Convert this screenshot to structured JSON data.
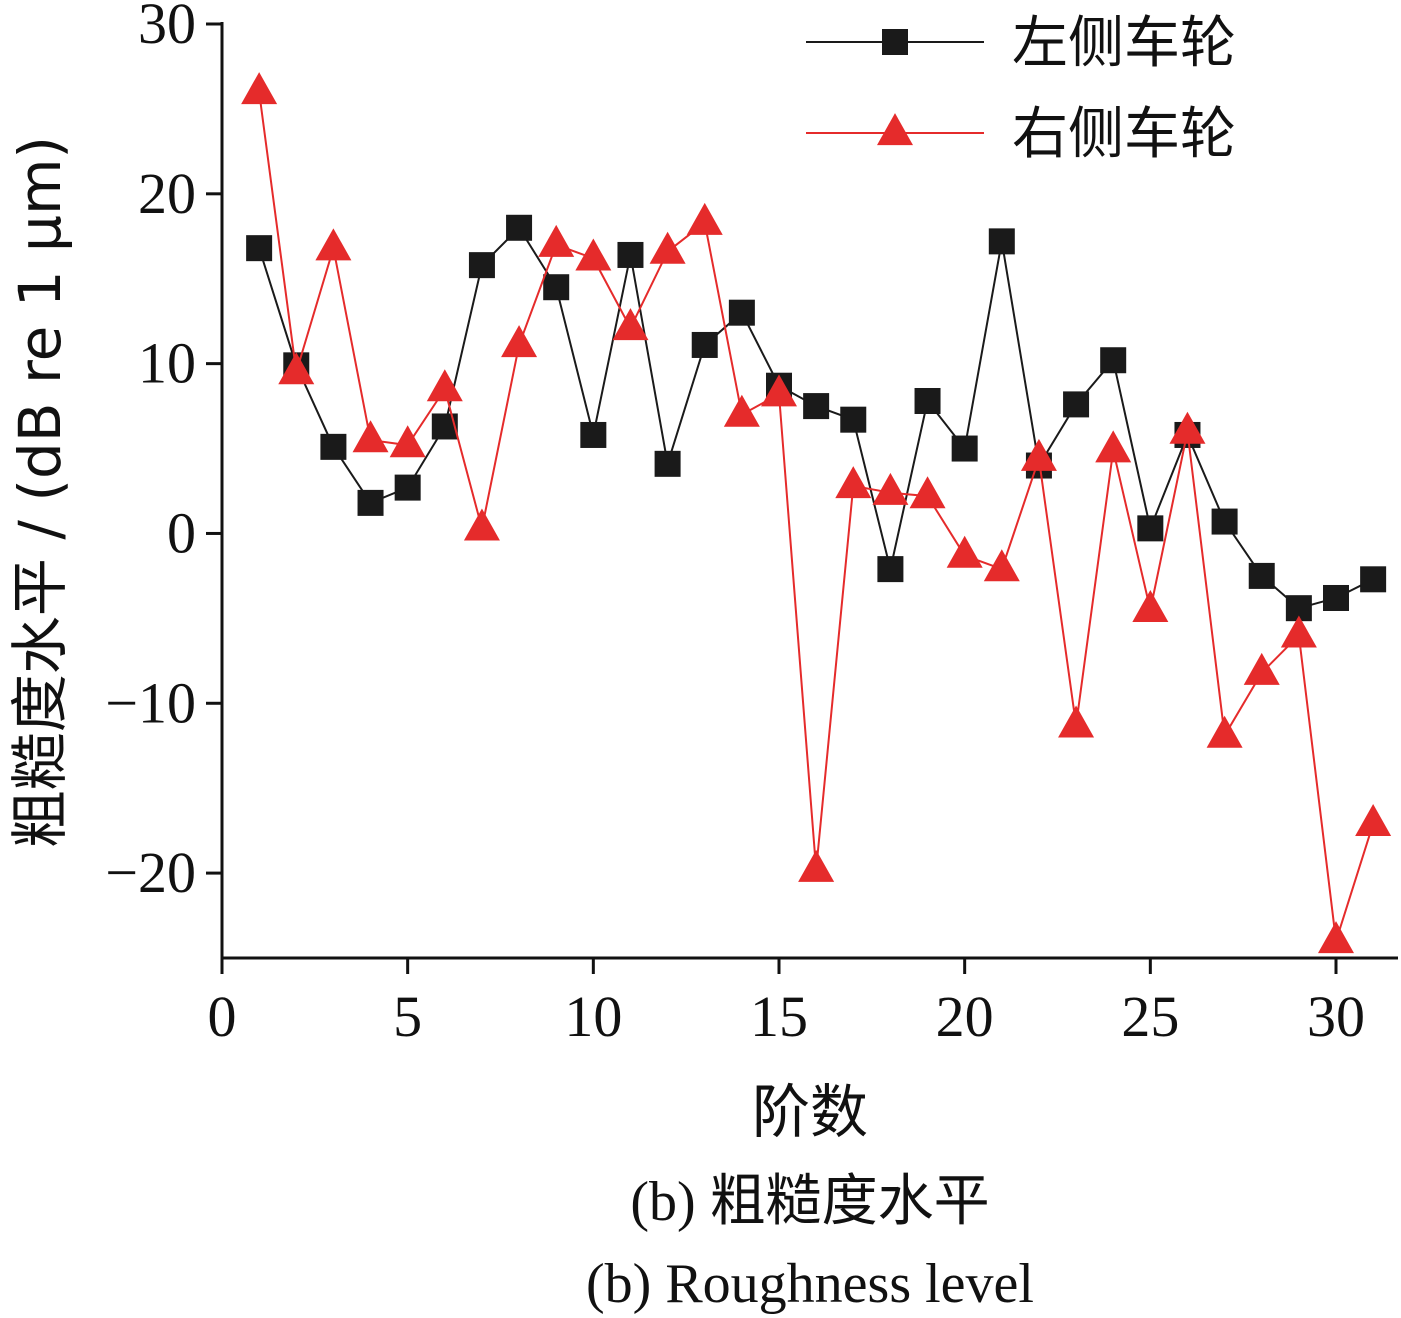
{
  "chart_data": {
    "type": "line",
    "x": [
      1,
      2,
      3,
      4,
      5,
      6,
      7,
      8,
      9,
      10,
      11,
      12,
      13,
      14,
      15,
      16,
      17,
      18,
      19,
      20,
      21,
      22,
      23,
      24,
      25,
      26,
      27,
      28,
      29,
      30,
      31
    ],
    "series": [
      {
        "name": "左侧车轮",
        "color": "#1a1a1a",
        "marker": "square",
        "values": [
          16.8,
          9.9,
          5.1,
          1.8,
          2.7,
          6.3,
          15.8,
          18.0,
          14.5,
          5.8,
          16.4,
          4.1,
          11.1,
          13.0,
          8.7,
          7.5,
          6.7,
          -2.1,
          7.8,
          5.0,
          17.2,
          4.0,
          7.6,
          10.2,
          0.3,
          5.8,
          0.7,
          -2.5,
          -4.4,
          -3.8,
          -2.7
        ]
      },
      {
        "name": "右侧车轮",
        "color": "#e52b2b",
        "marker": "triangle",
        "values": [
          26.0,
          9.5,
          16.8,
          5.5,
          5.2,
          8.5,
          0.3,
          11.1,
          17.0,
          16.2,
          12.1,
          16.6,
          18.3,
          7.0,
          8.2,
          -19.8,
          2.8,
          2.4,
          2.2,
          -1.3,
          -2.1,
          4.4,
          -11.3,
          4.9,
          -4.5,
          6.0,
          -11.9,
          -8.2,
          -6.0,
          -24.0,
          -17.1
        ]
      }
    ],
    "xlim": [
      0,
      32
    ],
    "ylim": [
      -25,
      30
    ],
    "xticks": [
      "0",
      "5",
      "10",
      "15",
      "20",
      "25",
      "30"
    ],
    "xtick_values": [
      0,
      5,
      10,
      15,
      20,
      25,
      30
    ],
    "yticks": [
      "30",
      "20",
      "10",
      "0",
      "−10",
      "−20"
    ],
    "ytick_values": [
      30,
      20,
      10,
      0,
      -10,
      -20
    ],
    "xlabel": "阶数",
    "ylabel": "粗糙度水平 / (dB re 1 μm)",
    "grid": false,
    "legend_position": "top-right"
  },
  "caption": {
    "line_cn": "(b) 粗糙度水平",
    "line_en": "(b) Roughness level"
  }
}
